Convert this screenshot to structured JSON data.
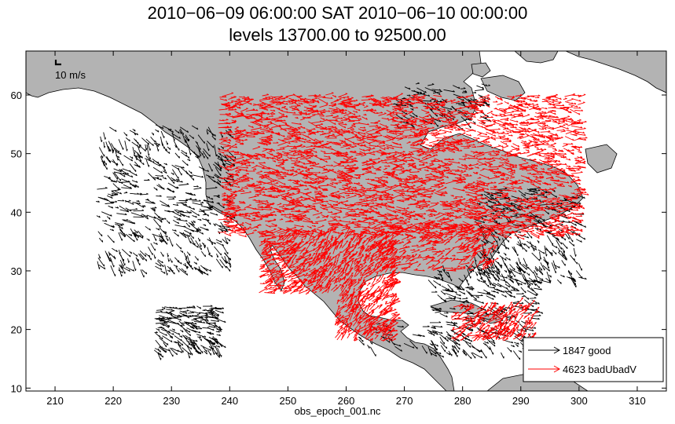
{
  "title_line1": "2010−06−09 06:00:00 SAT 2010−06−10 00:00:00",
  "title_line2": "levels 13700.00 to 92500.00",
  "xlabel": "obs_epoch_001.nc",
  "colors": {
    "land": "#b3b3b3",
    "water": "#ffffff",
    "good": "#000000",
    "bad": "#ff0000"
  },
  "chart_data": {
    "type": "scatter",
    "subtype": "wind-vector-map",
    "title": "2010−06−09 06:00:00 SAT 2010−06−10 00:00:00 levels 13700.00 to 92500.00",
    "xlabel": "obs_epoch_001.nc",
    "ylabel": "",
    "xlim": [
      205,
      315
    ],
    "ylim": [
      9.5,
      67.5
    ],
    "xticks": [
      210,
      220,
      230,
      240,
      250,
      260,
      270,
      280,
      290,
      300,
      310
    ],
    "yticks": [
      10,
      20,
      30,
      40,
      50,
      60
    ],
    "grid": false,
    "reference_vector": {
      "label": "10 m/s",
      "magnitude": 10
    },
    "legend": {
      "placement": "bottom-right",
      "entries": [
        {
          "label": "1847 good",
          "count": 1847,
          "color": "#000000"
        },
        {
          "label": "4623 badUbadV",
          "count": 4623,
          "color": "#ff0000"
        }
      ]
    },
    "series": [
      {
        "name": "1847 good",
        "count": 1847
      },
      {
        "name": "4623 badUbadV",
        "count": 4623
      }
    ]
  }
}
